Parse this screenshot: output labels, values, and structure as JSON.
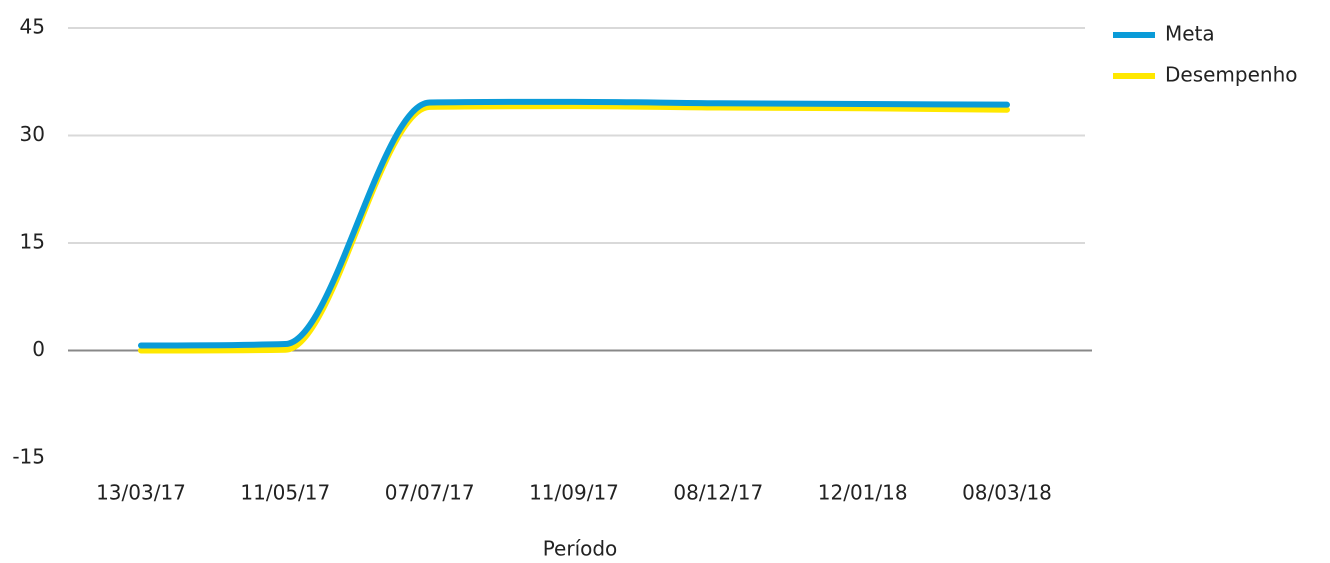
{
  "chart_data": {
    "type": "line",
    "x_label": "Período",
    "categories": [
      "13/03/17",
      "11/05/17",
      "07/07/17",
      "11/09/17",
      "08/12/17",
      "12/01/18",
      "08/03/18"
    ],
    "series": [
      {
        "name": "Meta",
        "color": "#0a9bd8",
        "values": [
          0.7,
          0.9,
          34.6,
          34.7,
          34.5,
          34.4,
          34.3
        ]
      },
      {
        "name": "Desempenho",
        "color": "#ffe800",
        "values": [
          0,
          0.1,
          34.0,
          34.1,
          33.9,
          33.8,
          33.6
        ]
      }
    ],
    "ylim": [
      -15,
      45
    ],
    "yticks": [
      -15,
      0,
      15,
      30,
      45
    ],
    "grid": true,
    "legend": "top-right"
  }
}
